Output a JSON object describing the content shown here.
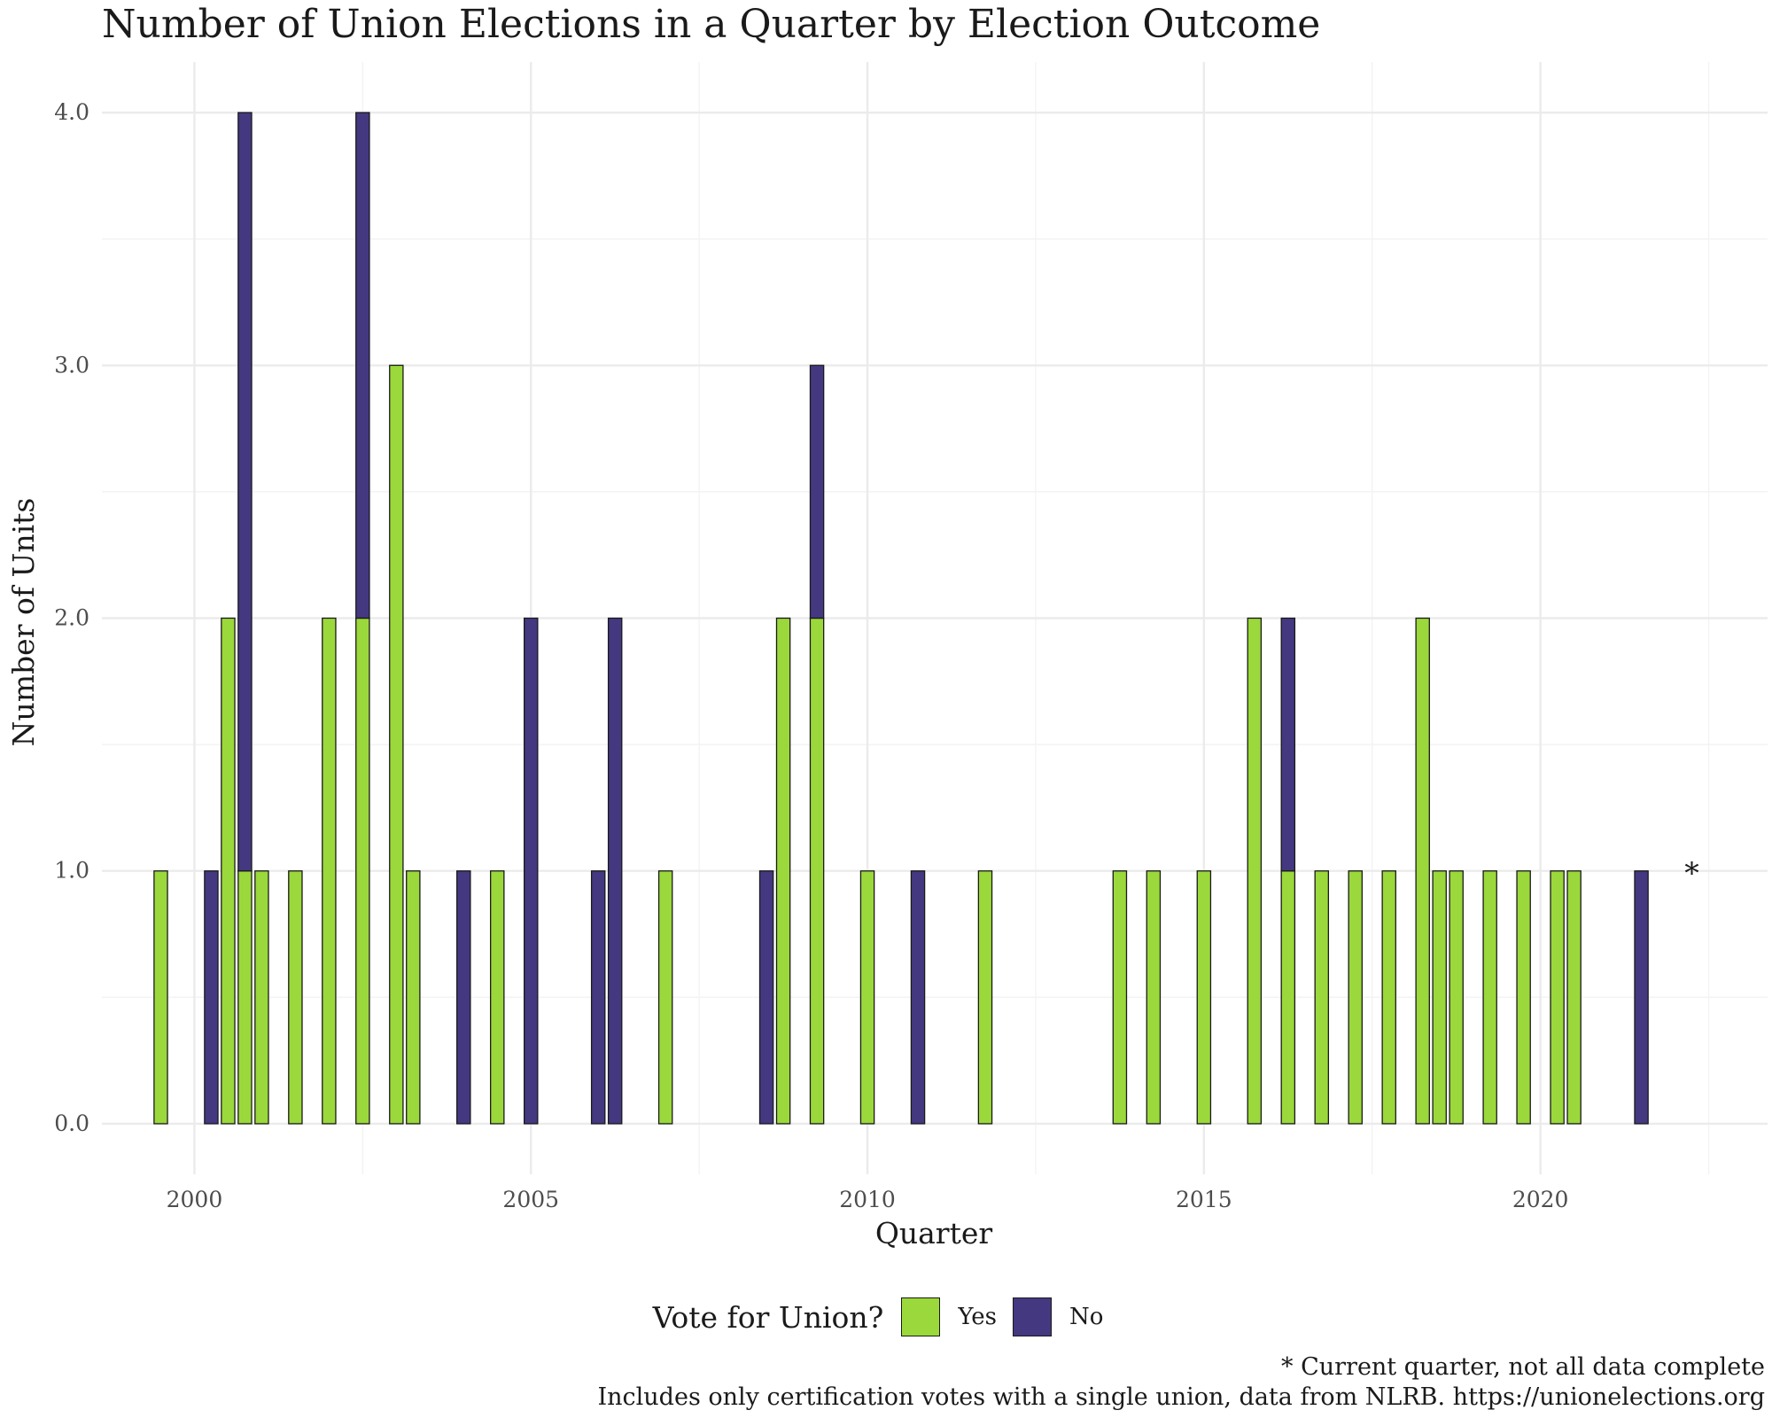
{
  "chart_data": {
    "type": "bar",
    "stacked": true,
    "title": "Number of Union Elections in a Quarter by Election Outcome",
    "xlabel": "Quarter",
    "ylabel": "Number of Units",
    "x_unit": "year",
    "xlim": [
      1998.625,
      2023.375
    ],
    "ylim": [
      -0.2,
      4.2
    ],
    "x_ticks": [
      2000,
      2005,
      2010,
      2015,
      2020
    ],
    "x_tick_labels": [
      "2000",
      "2005",
      "2010",
      "2015",
      "2020"
    ],
    "y_ticks": [
      0,
      1,
      2,
      3,
      4
    ],
    "y_tick_labels": [
      "0.0",
      "1.0",
      "2.0",
      "3.0",
      "4.0"
    ],
    "grid": true,
    "bar_width_years": 0.2,
    "legend": {
      "title": "Vote for Union?",
      "position": "bottom",
      "entries": [
        {
          "label": "Yes",
          "color": "#9bd83b"
        },
        {
          "label": "No",
          "color": "#443881"
        }
      ]
    },
    "series": [
      {
        "name": "Yes",
        "color": "#9bd83b",
        "points": [
          {
            "x": 1999.5,
            "y": 1
          },
          {
            "x": 2000.5,
            "y": 2
          },
          {
            "x": 2000.75,
            "y": 1
          },
          {
            "x": 2001.0,
            "y": 1
          },
          {
            "x": 2001.5,
            "y": 1
          },
          {
            "x": 2002.0,
            "y": 2
          },
          {
            "x": 2002.5,
            "y": 2
          },
          {
            "x": 2003.0,
            "y": 3
          },
          {
            "x": 2003.25,
            "y": 1
          },
          {
            "x": 2004.5,
            "y": 1
          },
          {
            "x": 2007.0,
            "y": 1
          },
          {
            "x": 2008.75,
            "y": 2
          },
          {
            "x": 2009.25,
            "y": 2
          },
          {
            "x": 2010.0,
            "y": 1
          },
          {
            "x": 2011.75,
            "y": 1
          },
          {
            "x": 2013.75,
            "y": 1
          },
          {
            "x": 2014.25,
            "y": 1
          },
          {
            "x": 2015.0,
            "y": 1
          },
          {
            "x": 2015.75,
            "y": 2
          },
          {
            "x": 2016.25,
            "y": 1
          },
          {
            "x": 2016.75,
            "y": 1
          },
          {
            "x": 2017.25,
            "y": 1
          },
          {
            "x": 2017.75,
            "y": 1
          },
          {
            "x": 2018.25,
            "y": 2
          },
          {
            "x": 2018.5,
            "y": 1
          },
          {
            "x": 2018.75,
            "y": 1
          },
          {
            "x": 2019.25,
            "y": 1
          },
          {
            "x": 2019.75,
            "y": 1
          },
          {
            "x": 2020.25,
            "y": 1
          },
          {
            "x": 2020.5,
            "y": 1
          }
        ]
      },
      {
        "name": "No",
        "color": "#443881",
        "points": [
          {
            "x": 2000.25,
            "y": 1
          },
          {
            "x": 2000.75,
            "y": 3
          },
          {
            "x": 2002.5,
            "y": 2
          },
          {
            "x": 2004.0,
            "y": 1
          },
          {
            "x": 2005.0,
            "y": 2
          },
          {
            "x": 2006.0,
            "y": 1
          },
          {
            "x": 2006.25,
            "y": 2
          },
          {
            "x": 2008.5,
            "y": 1
          },
          {
            "x": 2009.25,
            "y": 1
          },
          {
            "x": 2010.75,
            "y": 1
          },
          {
            "x": 2016.25,
            "y": 1
          },
          {
            "x": 2021.5,
            "y": 1
          }
        ]
      }
    ],
    "annotations": [
      {
        "text": "*",
        "x": 2022.25,
        "y": 1
      }
    ],
    "caption": [
      "* Current quarter, not all data complete",
      "Includes only certification votes with a single union, data from NLRB. https://unionelections.org"
    ]
  }
}
